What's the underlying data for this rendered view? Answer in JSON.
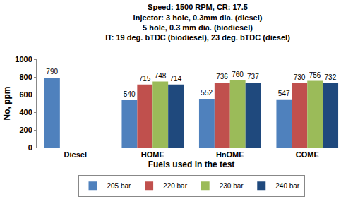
{
  "chart_data": {
    "type": "bar",
    "title": "Speed: 1500 RPM, CR: 17.5\nInjector: 3 hole, 0.3mm dia. (diesel)\n5 hole, 0.3 mm dia. (biodiesel)\nIT: 19 deg. bTDC (biodiesel), 23 deg. bTDC (diesel)",
    "x_label": "Fuels used in the test",
    "y_label": "No, ppm",
    "categories": [
      "Diesel",
      "HOME",
      "HnOME",
      "COME"
    ],
    "series": [
      {
        "name": "205 bar",
        "color": "#4F81BD",
        "values": [
          790,
          540,
          552,
          547
        ]
      },
      {
        "name": "220 bar",
        "color": "#C0504D",
        "values": [
          null,
          715,
          736,
          730
        ]
      },
      {
        "name": "230 bar",
        "color": "#9BBB59",
        "values": [
          null,
          748,
          760,
          756
        ]
      },
      {
        "name": "240 bar",
        "color": "#1F497D",
        "values": [
          null,
          714,
          737,
          732
        ]
      }
    ],
    "ylim": [
      0,
      1000
    ],
    "yticks": [
      0,
      200,
      400,
      600,
      800,
      1000
    ],
    "grid": false,
    "legend": "bottom",
    "data_labels": true
  }
}
